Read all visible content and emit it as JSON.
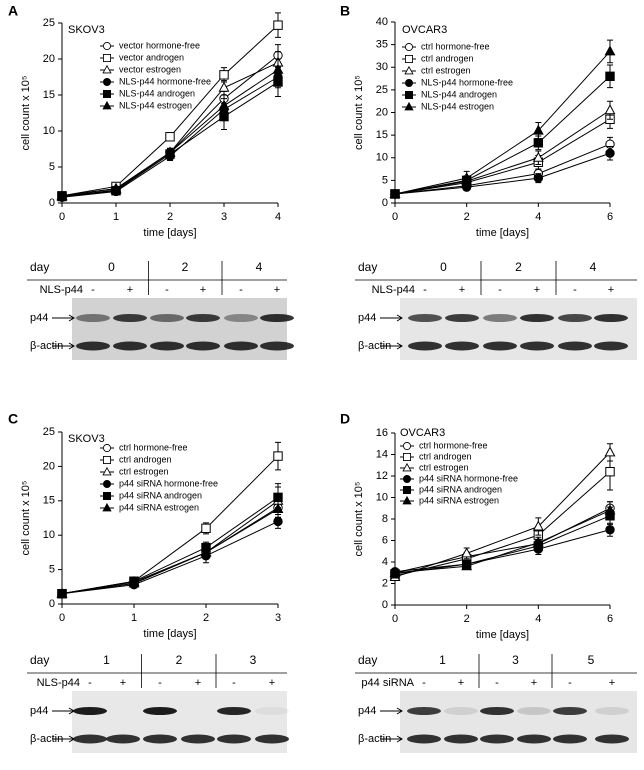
{
  "chart_data": [
    {
      "type": "line",
      "panel": "A",
      "title": "SKOV3",
      "x_label": "time [days]",
      "y_label": "cell count x 10⁵",
      "x": [
        0,
        1,
        2,
        3,
        4
      ],
      "xlim": [
        0,
        4
      ],
      "xticks": [
        0,
        1,
        2,
        3,
        4
      ],
      "ylim": [
        0,
        25
      ],
      "yticks": [
        0,
        5,
        10,
        15,
        20,
        25
      ],
      "series": [
        {
          "name": "vector hormone-free",
          "color": "#000000",
          "marker": "circle-open",
          "values": [
            1,
            2,
            7,
            14.5,
            20.5
          ],
          "errors": [
            0.3,
            0.3,
            0.5,
            1,
            1.5
          ]
        },
        {
          "name": "vector androgen",
          "color": "#000000",
          "marker": "square-open",
          "values": [
            1,
            2.3,
            9.2,
            17.8,
            24.7
          ],
          "errors": [
            0.3,
            0.3,
            0.5,
            1,
            1.7
          ]
        },
        {
          "name": "vector estrogen",
          "color": "#000000",
          "marker": "triangle-open",
          "values": [
            1,
            2,
            7,
            16,
            19.5
          ],
          "errors": [
            0.3,
            0.3,
            0.5,
            1,
            1.5
          ]
        },
        {
          "name": "NLS-p44 hormone-free",
          "color": "#000000",
          "marker": "circle",
          "values": [
            0.8,
            1.6,
            6.5,
            13,
            17.5
          ],
          "errors": [
            0.3,
            0.3,
            0.6,
            1.5,
            1.5
          ]
        },
        {
          "name": "NLS-p44 androgen",
          "color": "#000000",
          "marker": "square",
          "values": [
            0.9,
            1.7,
            6.8,
            12,
            16.8
          ],
          "errors": [
            0.3,
            0.3,
            0.6,
            1.8,
            2
          ]
        },
        {
          "name": "NLS-p44 estrogen",
          "color": "#000000",
          "marker": "triangle",
          "values": [
            0.9,
            1.8,
            7,
            13.5,
            18.5
          ],
          "errors": [
            0.3,
            0.3,
            0.6,
            1.5,
            1.5
          ]
        }
      ]
    },
    {
      "type": "line",
      "panel": "B",
      "title": "OVCAR3",
      "x_label": "time [days]",
      "y_label": "cell count x 10⁵",
      "x": [
        0,
        2,
        4,
        6
      ],
      "xlim": [
        0,
        6
      ],
      "xticks": [
        0,
        2,
        4,
        6
      ],
      "ylim": [
        0,
        40
      ],
      "yticks": [
        0,
        5,
        10,
        15,
        20,
        25,
        30,
        35,
        40
      ],
      "series": [
        {
          "name": "ctrl hormone-free",
          "color": "#000000",
          "marker": "circle-open",
          "values": [
            2,
            3.8,
            6.5,
            13
          ],
          "errors": [
            0.3,
            0.8,
            1,
            1.5
          ]
        },
        {
          "name": "ctrl androgen",
          "color": "#000000",
          "marker": "square-open",
          "values": [
            2,
            4.5,
            9,
            18.5
          ],
          "errors": [
            0.3,
            0.8,
            1.5,
            2
          ]
        },
        {
          "name": "ctrl estrogen",
          "color": "#000000",
          "marker": "triangle-open",
          "values": [
            2,
            4.8,
            10,
            20.5
          ],
          "errors": [
            0.3,
            0.8,
            1.5,
            2
          ]
        },
        {
          "name": "NLS-p44 hormone-free",
          "color": "#000000",
          "marker": "circle",
          "values": [
            2,
            3.5,
            5.5,
            11
          ],
          "errors": [
            0.3,
            0.6,
            1,
            1.5
          ]
        },
        {
          "name": "NLS-p44 androgen",
          "color": "#000000",
          "marker": "square",
          "values": [
            2,
            5,
            13.3,
            28
          ],
          "errors": [
            0.3,
            1,
            1.5,
            2.5
          ]
        },
        {
          "name": "NLS-p44 estrogen",
          "color": "#000000",
          "marker": "triangle",
          "values": [
            2,
            5.5,
            16,
            33.5
          ],
          "errors": [
            0.3,
            1.5,
            1.8,
            2.5
          ]
        }
      ]
    },
    {
      "type": "line",
      "panel": "C",
      "title": "SKOV3",
      "x_label": "time [days]",
      "y_label": "cell count x 10⁵",
      "x": [
        0,
        1,
        2,
        3
      ],
      "xlim": [
        0,
        3
      ],
      "xticks": [
        0,
        1,
        2,
        3
      ],
      "ylim": [
        0,
        25
      ],
      "yticks": [
        0,
        5,
        10,
        15,
        20,
        25
      ],
      "series": [
        {
          "name": "ctrl hormone-free",
          "color": "#000000",
          "marker": "circle-open",
          "values": [
            1.5,
            3,
            7.5,
            14
          ],
          "errors": [
            0.3,
            0.3,
            0.8,
            1.5
          ]
        },
        {
          "name": "ctrl androgen",
          "color": "#000000",
          "marker": "square-open",
          "values": [
            1.5,
            3.3,
            11,
            21.5
          ],
          "errors": [
            0.3,
            0.3,
            0.8,
            2
          ]
        },
        {
          "name": "ctrl estrogen",
          "color": "#000000",
          "marker": "triangle-open",
          "values": [
            1.5,
            3,
            7.5,
            15
          ],
          "errors": [
            0.3,
            0.3,
            0.8,
            2.5
          ]
        },
        {
          "name": "p44 siRNA hormone-free",
          "color": "#000000",
          "marker": "circle",
          "values": [
            1.5,
            2.8,
            7,
            12
          ],
          "errors": [
            0.3,
            0.3,
            1,
            1
          ]
        },
        {
          "name": "p44 siRNA androgen",
          "color": "#000000",
          "marker": "square",
          "values": [
            1.5,
            3.3,
            8.2,
            15.5
          ],
          "errors": [
            0.3,
            0.3,
            0.8,
            1.5
          ]
        },
        {
          "name": "p44 siRNA estrogen",
          "color": "#000000",
          "marker": "triangle",
          "values": [
            1.5,
            3.2,
            7.5,
            13.8
          ],
          "errors": [
            0.3,
            0.3,
            0.8,
            1.2
          ]
        }
      ]
    },
    {
      "type": "line",
      "panel": "D",
      "title": "OVCAR3",
      "x_label": "time [days]",
      "y_label": "cell count x 10⁵",
      "x": [
        0,
        2,
        4,
        6
      ],
      "xlim": [
        0,
        6
      ],
      "xticks": [
        0,
        2,
        4,
        6
      ],
      "ylim": [
        0,
        16
      ],
      "yticks": [
        0,
        2,
        4,
        6,
        8,
        10,
        12,
        14,
        16
      ],
      "series": [
        {
          "name": "ctrl hormone-free",
          "color": "#000000",
          "marker": "circle-open",
          "values": [
            3,
            4.5,
            5.7,
            9
          ],
          "errors": [
            0.3,
            0.4,
            0.4,
            0.6
          ]
        },
        {
          "name": "ctrl androgen",
          "color": "#000000",
          "marker": "square-open",
          "values": [
            2.7,
            4.3,
            6.5,
            12.4
          ],
          "errors": [
            0.3,
            0.4,
            0.6,
            1.7
          ]
        },
        {
          "name": "ctrl estrogen",
          "color": "#000000",
          "marker": "triangle-open",
          "values": [
            2.6,
            4.8,
            7.3,
            14.2
          ],
          "errors": [
            0.3,
            0.5,
            0.8,
            0.8
          ]
        },
        {
          "name": "p44 siRNA hormone-free",
          "color": "#000000",
          "marker": "circle",
          "values": [
            3.1,
            3.8,
            5.2,
            7
          ],
          "errors": [
            0.3,
            0.3,
            0.5,
            0.6
          ]
        },
        {
          "name": "p44 siRNA androgen",
          "color": "#000000",
          "marker": "square",
          "values": [
            2.9,
            3.8,
            5.5,
            8.3
          ],
          "errors": [
            0.3,
            0.3,
            0.5,
            0.8
          ]
        },
        {
          "name": "p44 siRNA estrogen",
          "color": "#000000",
          "marker": "triangle",
          "values": [
            3,
            3.6,
            5.8,
            8.8
          ],
          "errors": [
            0.3,
            0.3,
            0.5,
            0.8
          ]
        }
      ]
    }
  ],
  "blots": [
    {
      "day_label": "day",
      "days": [
        "0",
        "2",
        "4"
      ],
      "treatment": "NLS-p44",
      "lanes": [
        "-",
        "+",
        "-",
        "+",
        "-",
        "+"
      ],
      "rows": [
        "p44",
        "β-actin"
      ]
    },
    {
      "day_label": "day",
      "days": [
        "0",
        "2",
        "4"
      ],
      "treatment": "NLS-p44",
      "lanes": [
        "-",
        "+",
        "-",
        "+",
        "-",
        "+"
      ],
      "rows": [
        "p44",
        "β-actin"
      ]
    },
    {
      "day_label": "day",
      "days": [
        "1",
        "2",
        "3"
      ],
      "treatment": "NLS-p44",
      "lanes": [
        "-",
        "+",
        "-",
        "+",
        "-",
        "+"
      ],
      "rows": [
        "p44",
        "β-actin"
      ]
    },
    {
      "day_label": "day",
      "days": [
        "1",
        "3",
        "5"
      ],
      "treatment": "p44 siRNA",
      "lanes": [
        "-",
        "+",
        "-",
        "+",
        "-",
        "+"
      ],
      "rows": [
        "p44",
        "β-actin"
      ]
    }
  ]
}
